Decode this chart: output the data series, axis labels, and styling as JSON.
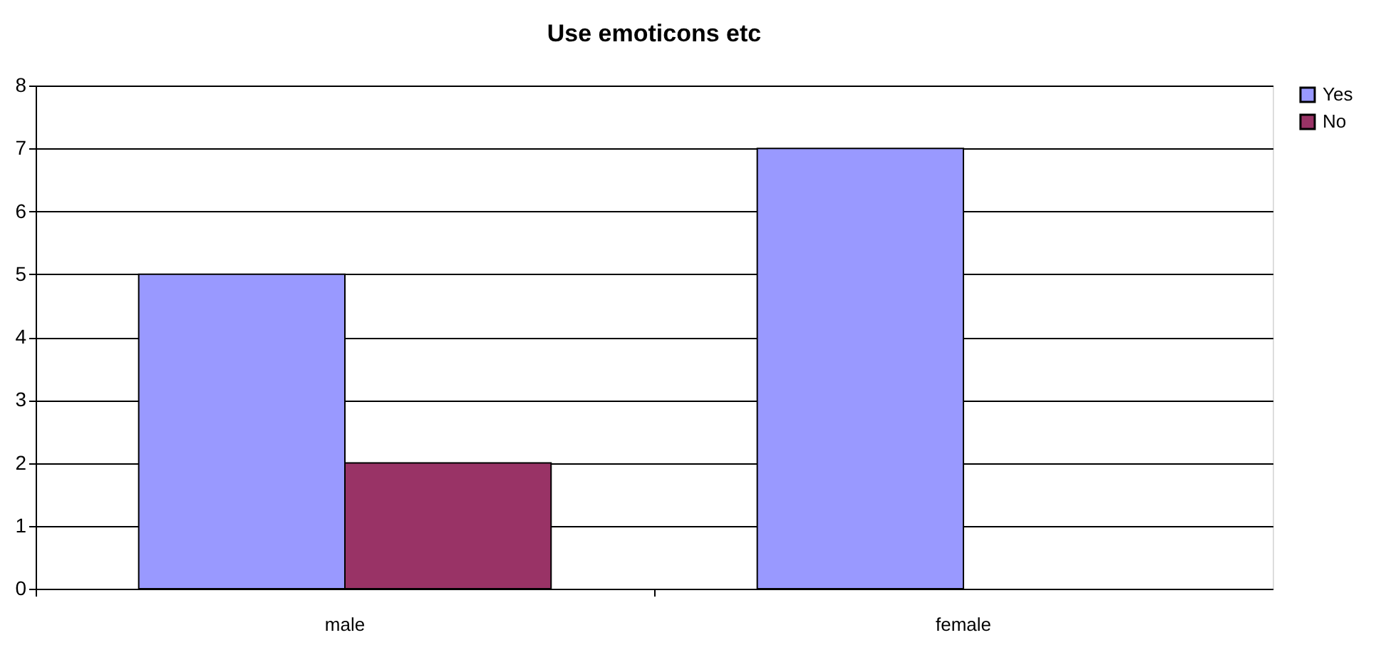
{
  "chart_data": {
    "type": "bar",
    "title": "Use emoticons etc",
    "categories": [
      "male",
      "female"
    ],
    "series": [
      {
        "name": "Yes",
        "color": "#9999ff",
        "values": [
          5,
          7
        ]
      },
      {
        "name": "No",
        "color": "#993366",
        "values": [
          2,
          null
        ]
      }
    ],
    "ylim": [
      0,
      8
    ],
    "yticks": [
      0,
      1,
      2,
      3,
      4,
      5,
      6,
      7,
      8
    ],
    "grid": "y",
    "legend": "right"
  }
}
